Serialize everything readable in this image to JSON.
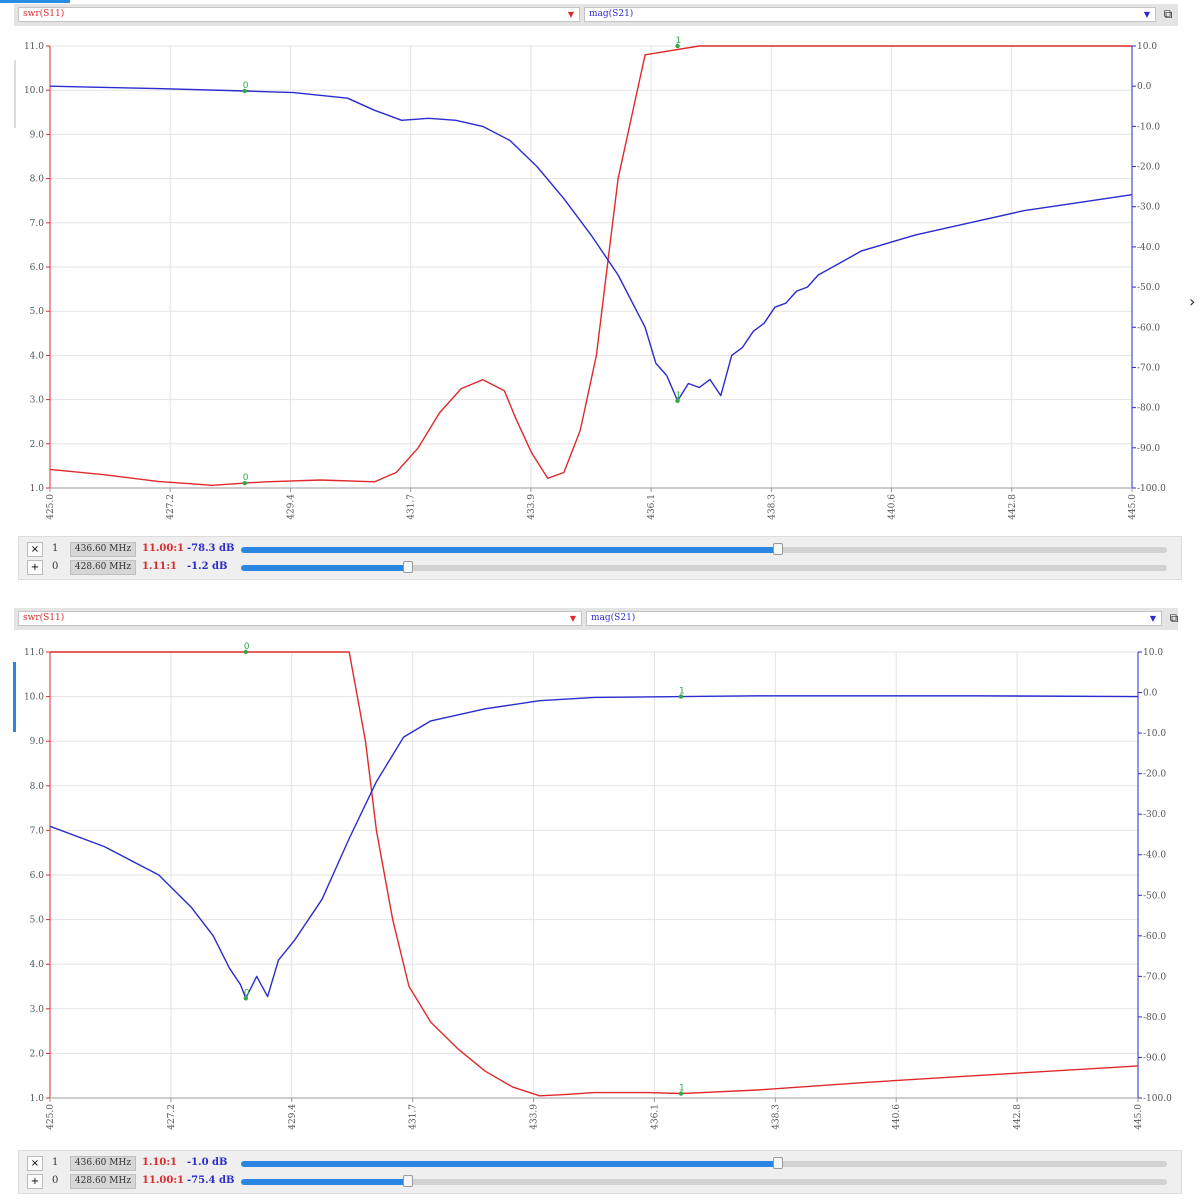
{
  "panels": [
    {
      "header": {
        "left_trace": "swr(S11)",
        "right_trace": "mag(S21)",
        "left_color": "#e02a2a",
        "right_color": "#2b2bd0"
      },
      "markers": [
        {
          "action": "×",
          "index": "1",
          "freq": "436.60 MHz",
          "swr": "11.00:1",
          "db": "-78.3 dB",
          "position": 0.58
        },
        {
          "action": "+",
          "index": "0",
          "freq": "428.60 MHz",
          "swr": "1.11:1",
          "db": "-1.2 dB",
          "position": 0.18
        }
      ]
    },
    {
      "header": {
        "left_trace": "swr(S11)",
        "right_trace": "mag(S21)",
        "left_color": "#e02a2a",
        "right_color": "#2b2bd0"
      },
      "markers": [
        {
          "action": "×",
          "index": "1",
          "freq": "436.60 MHz",
          "swr": "1.10:1",
          "db": "-1.0 dB",
          "position": 0.58
        },
        {
          "action": "+",
          "index": "0",
          "freq": "428.60 MHz",
          "swr": "11.00:1",
          "db": "-75.4 dB",
          "position": 0.18
        }
      ]
    }
  ],
  "chart_data": [
    {
      "type": "line",
      "x_ticks": [
        "425.0",
        "427.2",
        "429.4",
        "431.7",
        "433.9",
        "436.1",
        "438.3",
        "440.6",
        "442.8",
        "445.0"
      ],
      "y_left_ticks": [
        "11.0",
        "10.0",
        "9.0",
        "8.0",
        "7.0",
        "6.0",
        "5.0",
        "4.0",
        "3.0",
        "2.0",
        "1.0"
      ],
      "y_right_ticks": [
        "10.0",
        "0.0",
        "-10.0",
        "-20.0",
        "-30.0",
        "-40.0",
        "-50.0",
        "-60.0",
        "-70.0",
        "-80.0",
        "-90.0",
        "-100.0"
      ],
      "xlim": [
        425.0,
        445.0
      ],
      "ylim_left": [
        1.0,
        11.0
      ],
      "ylim_right": [
        -100.0,
        10.0
      ],
      "grid": true,
      "series": [
        {
          "name": "swr(S11)",
          "axis": "left",
          "color": "#e02a2a",
          "x": [
            425.0,
            426.0,
            427.0,
            428.0,
            428.6,
            429.0,
            430.0,
            431.0,
            431.4,
            431.8,
            432.2,
            432.6,
            433.0,
            433.4,
            433.6,
            433.9,
            434.2,
            434.5,
            434.8,
            435.1,
            435.3,
            435.5,
            436.0,
            437.0,
            438.0,
            440.0,
            442.0,
            445.0
          ],
          "y": [
            1.42,
            1.3,
            1.15,
            1.06,
            1.11,
            1.14,
            1.18,
            1.14,
            1.35,
            1.9,
            2.7,
            3.25,
            3.45,
            3.2,
            2.6,
            1.8,
            1.22,
            1.35,
            2.3,
            4.0,
            6.0,
            8.0,
            10.8,
            11.0,
            11.0,
            11.0,
            11.0,
            11.0
          ]
        },
        {
          "name": "mag(S21)",
          "axis": "right",
          "color": "#2b2bd0",
          "x": [
            425.0,
            427.0,
            428.6,
            429.5,
            430.5,
            431.0,
            431.5,
            432.0,
            432.5,
            433.0,
            433.5,
            434.0,
            434.5,
            435.0,
            435.5,
            436.0,
            436.2,
            436.4,
            436.6,
            436.8,
            437.0,
            437.2,
            437.4,
            437.6,
            437.8,
            438.0,
            438.2,
            438.4,
            438.6,
            438.8,
            439.0,
            439.2,
            439.6,
            440.0,
            441.0,
            442.0,
            443.0,
            444.0,
            445.0
          ],
          "y": [
            0.0,
            -0.6,
            -1.2,
            -1.6,
            -3.0,
            -6.0,
            -8.5,
            -8.0,
            -8.5,
            -10.0,
            -13.5,
            -20.0,
            -28.0,
            -37.0,
            -47.0,
            -60.0,
            -69.0,
            -72.0,
            -78.3,
            -74.0,
            -75.0,
            -73.0,
            -77.0,
            -67.0,
            -65.0,
            -61.0,
            -59.0,
            -55.0,
            -54.0,
            -51.0,
            -50.0,
            -47.0,
            -44.0,
            -41.0,
            -37.0,
            -34.0,
            -31.0,
            -29.0,
            -27.0
          ]
        }
      ],
      "markers": [
        {
          "label": "0",
          "x": 428.6
        },
        {
          "label": "1",
          "x": 436.6
        }
      ]
    },
    {
      "type": "line",
      "x_ticks": [
        "425.0",
        "427.2",
        "429.4",
        "431.7",
        "433.9",
        "436.1",
        "438.3",
        "440.6",
        "442.8",
        "445.0"
      ],
      "y_left_ticks": [
        "11.0",
        "10.0",
        "9.0",
        "8.0",
        "7.0",
        "6.0",
        "5.0",
        "4.0",
        "3.0",
        "2.0",
        "1.0"
      ],
      "y_right_ticks": [
        "10.0",
        "0.0",
        "-10.0",
        "-20.0",
        "-30.0",
        "-40.0",
        "-50.0",
        "-60.0",
        "-70.0",
        "-80.0",
        "-90.0",
        "-100.0"
      ],
      "xlim": [
        425.0,
        445.0
      ],
      "ylim_left": [
        1.0,
        11.0
      ],
      "ylim_right": [
        -100.0,
        10.0
      ],
      "grid": true,
      "series": [
        {
          "name": "swr(S11)",
          "axis": "left",
          "color": "#e02a2a",
          "x": [
            425.0,
            427.0,
            429.0,
            430.5,
            430.8,
            431.0,
            431.3,
            431.6,
            432.0,
            432.5,
            433.0,
            433.5,
            434.0,
            434.5,
            435.0,
            436.0,
            436.6,
            437.0,
            438.0,
            440.0,
            442.0,
            445.0
          ],
          "y": [
            11.0,
            11.0,
            11.0,
            11.0,
            9.0,
            7.0,
            5.0,
            3.5,
            2.7,
            2.1,
            1.6,
            1.25,
            1.05,
            1.08,
            1.12,
            1.12,
            1.1,
            1.12,
            1.18,
            1.35,
            1.5,
            1.72
          ]
        },
        {
          "name": "mag(S21)",
          "axis": "right",
          "color": "#2b2bd0",
          "x": [
            425.0,
            426.0,
            427.0,
            427.6,
            428.0,
            428.3,
            428.5,
            428.6,
            428.8,
            429.0,
            429.2,
            429.5,
            430.0,
            430.5,
            431.0,
            431.5,
            432.0,
            433.0,
            434.0,
            435.0,
            436.6,
            438.0,
            440.0,
            442.0,
            445.0
          ],
          "y": [
            -33.0,
            -38.0,
            -45.0,
            -53.0,
            -60.0,
            -68.0,
            -72.0,
            -75.4,
            -70.0,
            -75.0,
            -66.0,
            -61.0,
            -51.0,
            -36.0,
            -22.0,
            -11.0,
            -7.0,
            -4.0,
            -2.0,
            -1.2,
            -1.0,
            -0.8,
            -0.8,
            -0.8,
            -1.0
          ]
        }
      ],
      "markers": [
        {
          "label": "0",
          "x": 428.6
        },
        {
          "label": "1",
          "x": 436.6
        }
      ]
    }
  ]
}
